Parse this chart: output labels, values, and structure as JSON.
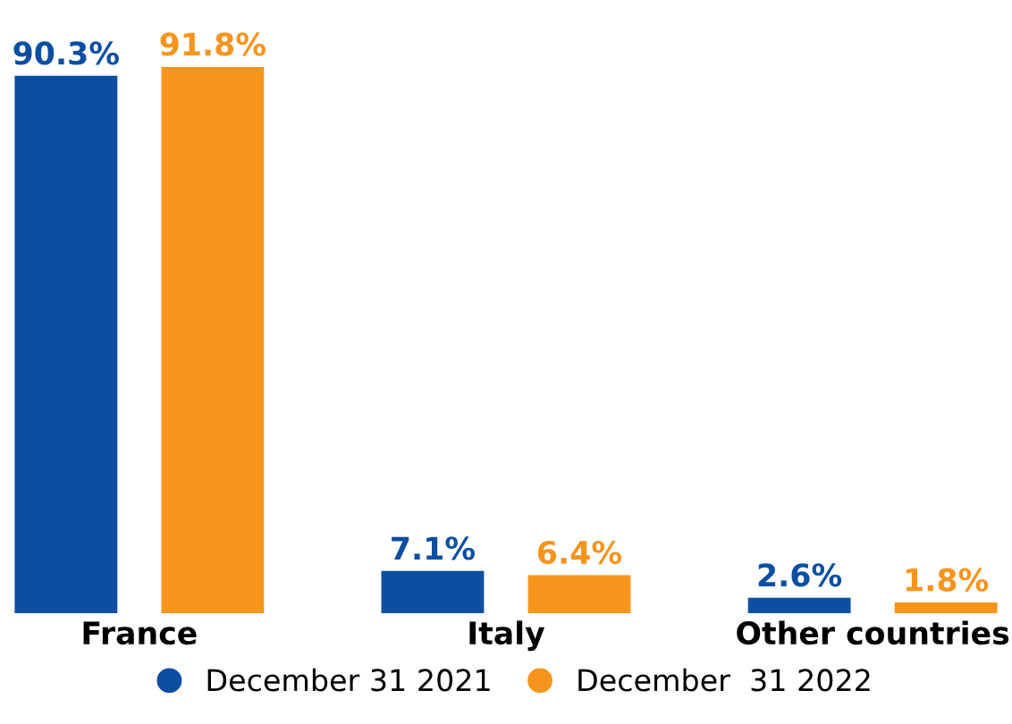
{
  "chart_data": {
    "type": "bar",
    "categories": [
      "France",
      "Italy",
      "Other countries"
    ],
    "series": [
      {
        "name": "December 31 2021",
        "color": "#0b4ea2",
        "values": [
          90.3,
          7.1,
          2.6
        ],
        "value_labels": [
          "90.3%",
          "7.1%",
          "2.6%"
        ]
      },
      {
        "name": "December  31 2022",
        "color": "#f7941d",
        "values": [
          91.8,
          6.4,
          1.8
        ],
        "value_labels": [
          "91.8%",
          "6.4%",
          "1.8%"
        ]
      }
    ],
    "legend": "bottom",
    "grid": false
  }
}
